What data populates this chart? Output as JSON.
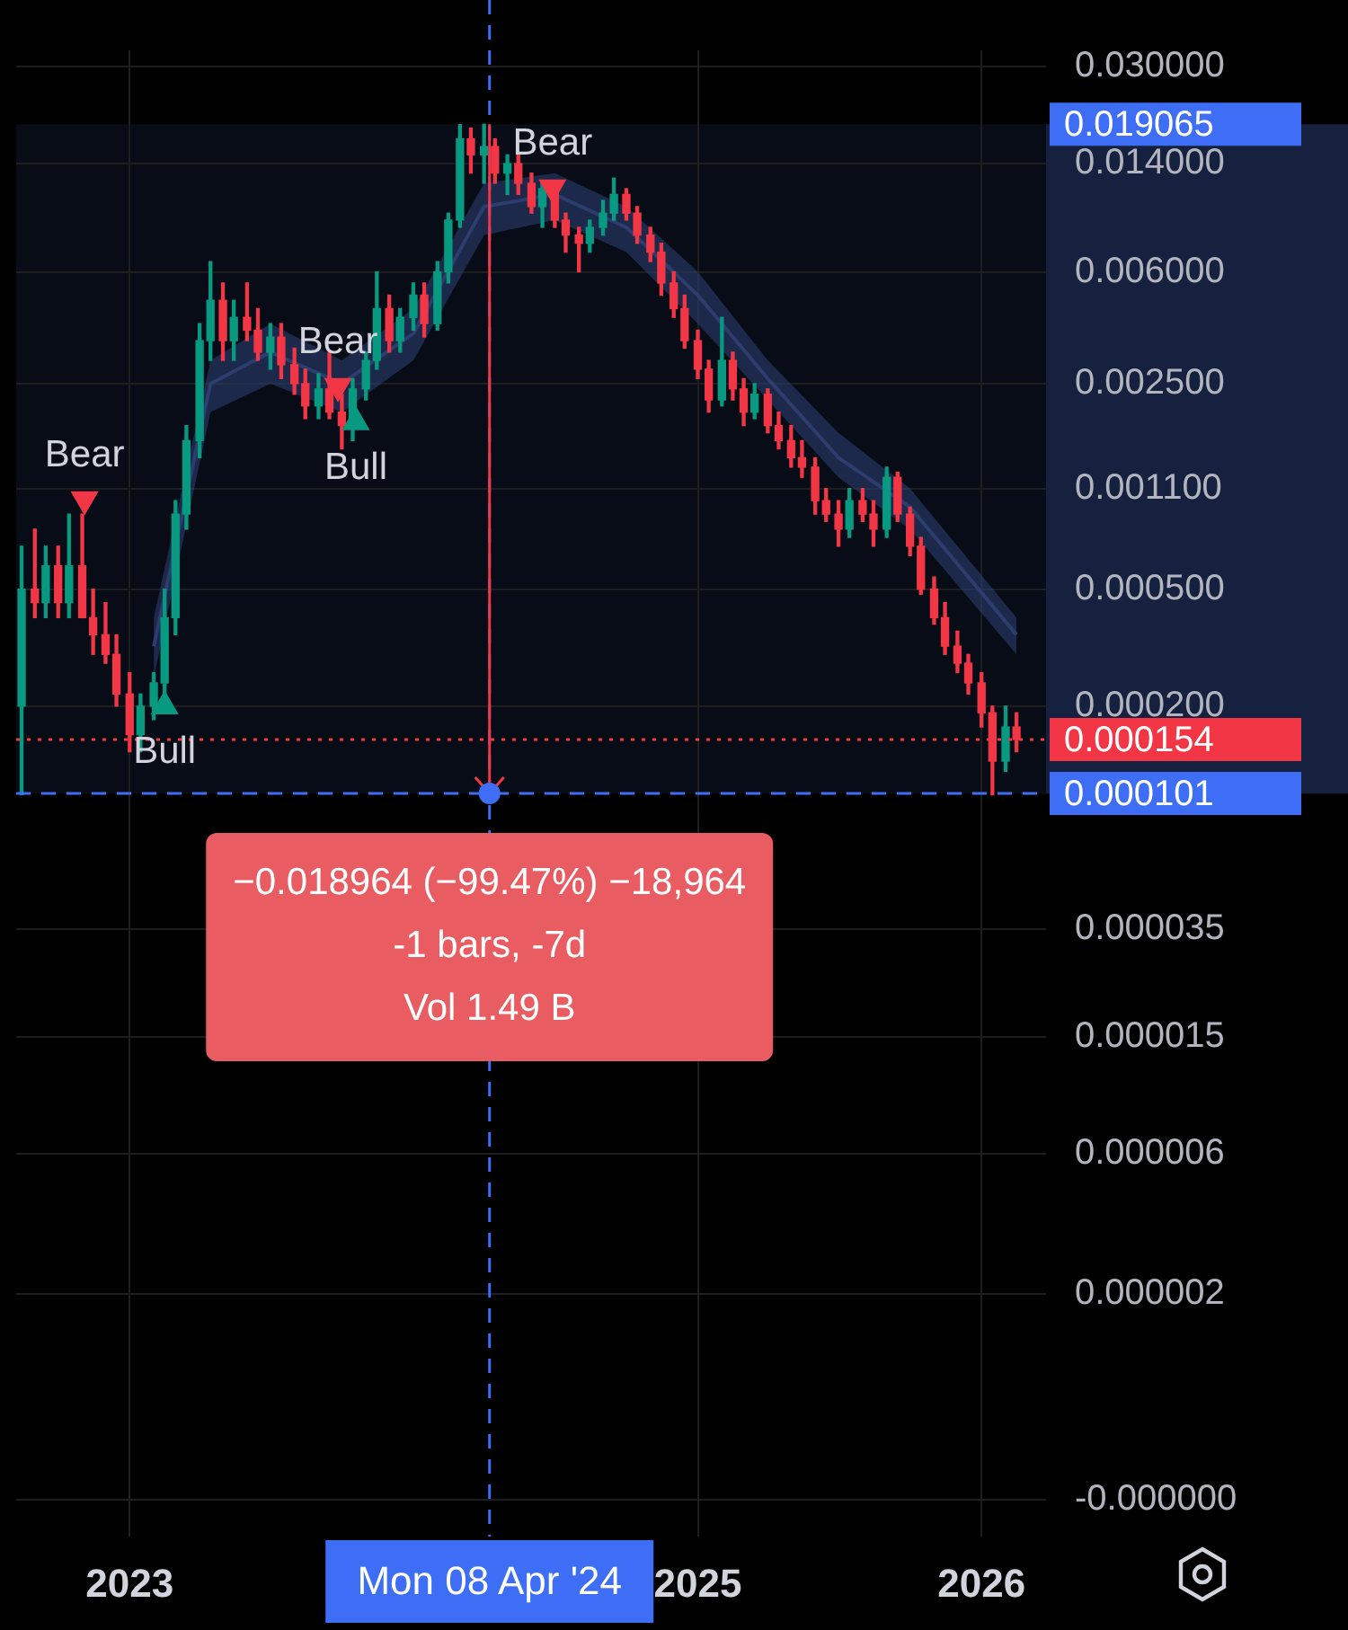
{
  "chart_data": {
    "type": "candlestick",
    "x": [
      "2022-08-15",
      "2022-09-01",
      "2022-09-15",
      "2022-10-01",
      "2022-10-15",
      "2022-11-01",
      "2022-11-15",
      "2022-12-01",
      "2022-12-15",
      "2023-01-01",
      "2023-01-15",
      "2023-02-01",
      "2023-02-15",
      "2023-03-01",
      "2023-03-15",
      "2023-04-01",
      "2023-04-15",
      "2023-05-01",
      "2023-05-15",
      "2023-06-01",
      "2023-06-15",
      "2023-07-01",
      "2023-07-15",
      "2023-08-01",
      "2023-08-15",
      "2023-09-01",
      "2023-09-15",
      "2023-10-01",
      "2023-10-15",
      "2023-11-01",
      "2023-11-15",
      "2023-12-01",
      "2023-12-15",
      "2024-01-01",
      "2024-01-15",
      "2024-02-01",
      "2024-02-15",
      "2024-03-01",
      "2024-03-15",
      "2024-04-01",
      "2024-04-15",
      "2024-05-01",
      "2024-05-15",
      "2024-06-01",
      "2024-06-15",
      "2024-07-01",
      "2024-07-15",
      "2024-08-01",
      "2024-08-15",
      "2024-09-01",
      "2024-09-15",
      "2024-10-01",
      "2024-10-15",
      "2024-11-01",
      "2024-11-15",
      "2024-12-01",
      "2024-12-15",
      "2025-01-01",
      "2025-01-15",
      "2025-02-01",
      "2025-02-15",
      "2025-03-01",
      "2025-03-15",
      "2025-04-01",
      "2025-04-15",
      "2025-05-01",
      "2025-05-15",
      "2025-06-01",
      "2025-06-15",
      "2025-07-01",
      "2025-07-15",
      "2025-08-01",
      "2025-08-15",
      "2025-09-01",
      "2025-09-15",
      "2025-10-01",
      "2025-10-15",
      "2025-11-01",
      "2025-11-15",
      "2025-12-01",
      "2025-12-15",
      "2026-01-01",
      "2026-01-15",
      "2026-02-01",
      "2026-02-15"
    ],
    "ohlc": [
      [
        0.0002,
        0.0007,
        0.0001,
        0.0005
      ],
      [
        0.0005,
        0.0008,
        0.0004,
        0.00045
      ],
      [
        0.00045,
        0.0007,
        0.0004,
        0.0006
      ],
      [
        0.0006,
        0.0007,
        0.0004,
        0.00045
      ],
      [
        0.00045,
        0.0009,
        0.0004,
        0.0006
      ],
      [
        0.0006,
        0.0009,
        0.0004,
        0.0004
      ],
      [
        0.0004,
        0.0005,
        0.0003,
        0.00035
      ],
      [
        0.00035,
        0.00045,
        0.00028,
        0.0003
      ],
      [
        0.0003,
        0.00035,
        0.0002,
        0.00022
      ],
      [
        0.00022,
        0.00026,
        0.00014,
        0.00016
      ],
      [
        0.00016,
        0.00022,
        0.00014,
        0.0002
      ],
      [
        0.0002,
        0.00026,
        0.00018,
        0.00024
      ],
      [
        0.00024,
        0.0005,
        0.0002,
        0.0004
      ],
      [
        0.0004,
        0.001,
        0.00035,
        0.0009
      ],
      [
        0.0009,
        0.0018,
        0.0008,
        0.0016
      ],
      [
        0.0016,
        0.004,
        0.0014,
        0.0035
      ],
      [
        0.0035,
        0.0065,
        0.003,
        0.0048
      ],
      [
        0.0048,
        0.0055,
        0.003,
        0.0035
      ],
      [
        0.0035,
        0.0048,
        0.003,
        0.0042
      ],
      [
        0.0042,
        0.0055,
        0.0035,
        0.0038
      ],
      [
        0.0038,
        0.0045,
        0.003,
        0.0032
      ],
      [
        0.0032,
        0.004,
        0.0028,
        0.0036
      ],
      [
        0.0036,
        0.004,
        0.0026,
        0.0029
      ],
      [
        0.0029,
        0.0033,
        0.0023,
        0.0025
      ],
      [
        0.0025,
        0.0028,
        0.0019,
        0.0021
      ],
      [
        0.0021,
        0.0027,
        0.0019,
        0.0024
      ],
      [
        0.0024,
        0.0032,
        0.0019,
        0.002
      ],
      [
        0.002,
        0.0023,
        0.0015,
        0.0018
      ],
      [
        0.0018,
        0.0026,
        0.0016,
        0.0024
      ],
      [
        0.0024,
        0.0032,
        0.0022,
        0.003
      ],
      [
        0.003,
        0.006,
        0.0028,
        0.0045
      ],
      [
        0.0045,
        0.005,
        0.0032,
        0.0035
      ],
      [
        0.0035,
        0.0045,
        0.0032,
        0.0042
      ],
      [
        0.0042,
        0.0055,
        0.0038,
        0.005
      ],
      [
        0.005,
        0.0055,
        0.0036,
        0.004
      ],
      [
        0.004,
        0.0065,
        0.0038,
        0.006
      ],
      [
        0.006,
        0.0095,
        0.0055,
        0.009
      ],
      [
        0.009,
        0.019,
        0.0085,
        0.017
      ],
      [
        0.017,
        0.0185,
        0.013,
        0.015
      ],
      [
        0.015,
        0.019065,
        0.012,
        0.016
      ],
      [
        0.016,
        0.017,
        0.012,
        0.013
      ],
      [
        0.013,
        0.015,
        0.011,
        0.014
      ],
      [
        0.014,
        0.015,
        0.011,
        0.012
      ],
      [
        0.012,
        0.013,
        0.0095,
        0.01
      ],
      [
        0.01,
        0.012,
        0.0085,
        0.0115
      ],
      [
        0.0115,
        0.012,
        0.0085,
        0.009
      ],
      [
        0.009,
        0.0095,
        0.007,
        0.008
      ],
      [
        0.008,
        0.0085,
        0.006,
        0.0075
      ],
      [
        0.0075,
        0.009,
        0.007,
        0.0085
      ],
      [
        0.0085,
        0.0105,
        0.008,
        0.0095
      ],
      [
        0.0095,
        0.0125,
        0.009,
        0.011
      ],
      [
        0.011,
        0.0115,
        0.009,
        0.0095
      ],
      [
        0.0095,
        0.01,
        0.0075,
        0.008
      ],
      [
        0.008,
        0.0085,
        0.0065,
        0.007
      ],
      [
        0.007,
        0.0075,
        0.005,
        0.0055
      ],
      [
        0.0055,
        0.006,
        0.0042,
        0.0045
      ],
      [
        0.0045,
        0.005,
        0.0033,
        0.0035
      ],
      [
        0.0035,
        0.0038,
        0.0026,
        0.0028
      ],
      [
        0.0028,
        0.003,
        0.002,
        0.0022
      ],
      [
        0.0022,
        0.0042,
        0.0021,
        0.003
      ],
      [
        0.003,
        0.0032,
        0.0022,
        0.0024
      ],
      [
        0.0024,
        0.0026,
        0.0018,
        0.002
      ],
      [
        0.002,
        0.0025,
        0.0019,
        0.0023
      ],
      [
        0.0023,
        0.0024,
        0.0017,
        0.0018
      ],
      [
        0.0018,
        0.002,
        0.0015,
        0.0016
      ],
      [
        0.0016,
        0.0018,
        0.0013,
        0.0014
      ],
      [
        0.0014,
        0.0016,
        0.0012,
        0.0013
      ],
      [
        0.0013,
        0.0014,
        0.0009,
        0.001
      ],
      [
        0.001,
        0.0011,
        0.00085,
        0.0009
      ],
      [
        0.0009,
        0.001,
        0.0007,
        0.0008
      ],
      [
        0.0008,
        0.0011,
        0.00075,
        0.001
      ],
      [
        0.001,
        0.0011,
        0.00085,
        0.0009
      ],
      [
        0.0009,
        0.001,
        0.0007,
        0.0008
      ],
      [
        0.0008,
        0.0013,
        0.00075,
        0.0012
      ],
      [
        0.0012,
        0.00125,
        0.00085,
        0.0009
      ],
      [
        0.0009,
        0.00095,
        0.00065,
        0.0007
      ],
      [
        0.0007,
        0.00075,
        0.00048,
        0.0005
      ],
      [
        0.0005,
        0.00055,
        0.00038,
        0.0004
      ],
      [
        0.0004,
        0.00045,
        0.0003,
        0.00032
      ],
      [
        0.00032,
        0.00036,
        0.00026,
        0.00028
      ],
      [
        0.00028,
        0.0003,
        0.00022,
        0.00024
      ],
      [
        0.00024,
        0.00026,
        0.00017,
        0.00019
      ],
      [
        0.00019,
        0.0002,
        0.0001,
        0.00013
      ],
      [
        0.00013,
        0.0002,
        0.00012,
        0.00017
      ],
      [
        0.00017,
        0.00019,
        0.00014,
        0.000154
      ]
    ],
    "colors": [
      "#089981",
      "#f23645",
      "#089981",
      "#f23645",
      "#089981",
      "#f23645",
      "#f23645",
      "#f23645",
      "#f23645",
      "#f23645",
      "#089981",
      "#089981",
      "#089981",
      "#089981",
      "#089981",
      "#089981",
      "#089981",
      "#f23645",
      "#089981",
      "#f23645",
      "#f23645",
      "#089981",
      "#f23645",
      "#f23645",
      "#f23645",
      "#089981",
      "#f23645",
      "#f23645",
      "#089981",
      "#089981",
      "#089981",
      "#f23645",
      "#089981",
      "#089981",
      "#f23645",
      "#089981",
      "#089981",
      "#089981",
      "#f23645",
      "#089981",
      "#f23645",
      "#089981",
      "#f23645",
      "#f23645",
      "#089981",
      "#f23645",
      "#f23645",
      "#f23645",
      "#089981",
      "#089981",
      "#089981",
      "#f23645",
      "#f23645",
      "#f23645",
      "#f23645",
      "#f23645",
      "#f23645",
      "#f23645",
      "#f23645",
      "#089981",
      "#f23645",
      "#f23645",
      "#089981",
      "#f23645",
      "#f23645",
      "#f23645",
      "#f23645",
      "#f23645",
      "#f23645",
      "#f23645",
      "#089981",
      "#f23645",
      "#f23645",
      "#089981",
      "#f23645",
      "#f23645",
      "#f23645",
      "#f23645",
      "#f23645",
      "#f23645",
      "#f23645",
      "#f23645",
      "#f23645",
      "#089981",
      "#f23645"
    ],
    "series": [
      {
        "type": "line",
        "color": "#2c3d6e",
        "x": [
          "2023-02-01",
          "2023-04-15",
          "2023-07-01",
          "2023-10-01",
          "2024-01-01",
          "2024-04-01",
          "2024-07-01",
          "2024-10-01",
          "2025-01-01",
          "2025-04-01",
          "2025-07-01",
          "2025-10-01",
          "2026-02-15"
        ],
        "values": [
          0.00032,
          0.0025,
          0.0032,
          0.0025,
          0.0037,
          0.01,
          0.011,
          0.0085,
          0.005,
          0.0026,
          0.0014,
          0.00095,
          0.00035
        ],
        "lower": [
          0.00025,
          0.002,
          0.0025,
          0.002,
          0.003,
          0.008,
          0.009,
          0.007,
          0.004,
          0.0022,
          0.0012,
          0.0008,
          0.0003
        ],
        "upper": [
          0.0004,
          0.003,
          0.004,
          0.003,
          0.0045,
          0.012,
          0.013,
          0.01,
          0.006,
          0.003,
          0.0017,
          0.0011,
          0.0004
        ]
      },
      {
        "type": "scatter",
        "name": "Bear",
        "color": "#f23645",
        "marker": "triangle",
        "x": [
          "2022-11-04",
          "2023-09-26",
          "2024-06-28"
        ],
        "values": [
          0.00101,
          0.00245,
          0.0116
        ]
      },
      {
        "type": "scatter",
        "name": "Bull",
        "color": "#089981",
        "marker": "triangle",
        "x": [
          "2023-02-15",
          "2023-10-19"
        ],
        "values": [
          0.0002,
          0.00185
        ]
      }
    ],
    "xlim": [
      "2022-08-08",
      "2026-03-25"
    ],
    "xticks": [
      "2023",
      "2025",
      "2026"
    ],
    "log": true,
    "ylim": [
      3e-07,
      0.034
    ],
    "yticks": [
      {
        "value": 0.03,
        "label": "0.030000"
      },
      {
        "value": 0.014,
        "label": "0.014000"
      },
      {
        "value": 0.006,
        "label": "0.006000"
      },
      {
        "value": 0.0025,
        "label": "0.002500"
      },
      {
        "value": 0.0011,
        "label": "0.001100"
      },
      {
        "value": 0.0005,
        "label": "0.000500"
      },
      {
        "value": 0.0002,
        "label": "0.000200"
      },
      {
        "value": 3.5e-05,
        "label": "0.000035"
      },
      {
        "value": 1.5e-05,
        "label": "0.000015"
      },
      {
        "value": 6e-06,
        "label": "0.000006"
      },
      {
        "value": 2e-06,
        "label": "0.000002"
      },
      {
        "value": 4e-07,
        "label": "-0.000000"
      }
    ],
    "grid": true,
    "ref_lines": [
      {
        "axis": "y",
        "value": 0.000154,
        "label": "0.000154",
        "color": "#f23645",
        "line_style": "dotted"
      },
      {
        "axis": "y",
        "value": 0.000101,
        "label": "0.000101",
        "color": "#3d6ef5",
        "line_style": "dashed"
      },
      {
        "axis": "x",
        "value": "2024-04-08",
        "label": "Mon 08 Apr '24",
        "color": "#3d6ef5",
        "line_style": "dashed"
      }
    ],
    "bands": [
      {
        "axis": "y",
        "from": 0.000101,
        "to": 0.019065,
        "label": "0.019065",
        "color": "#16213f"
      }
    ],
    "annotations": [
      "−0.018964 (−99.47%) −18,964",
      "-1 bars, -7d",
      "Vol 1.49 B"
    ]
  }
}
